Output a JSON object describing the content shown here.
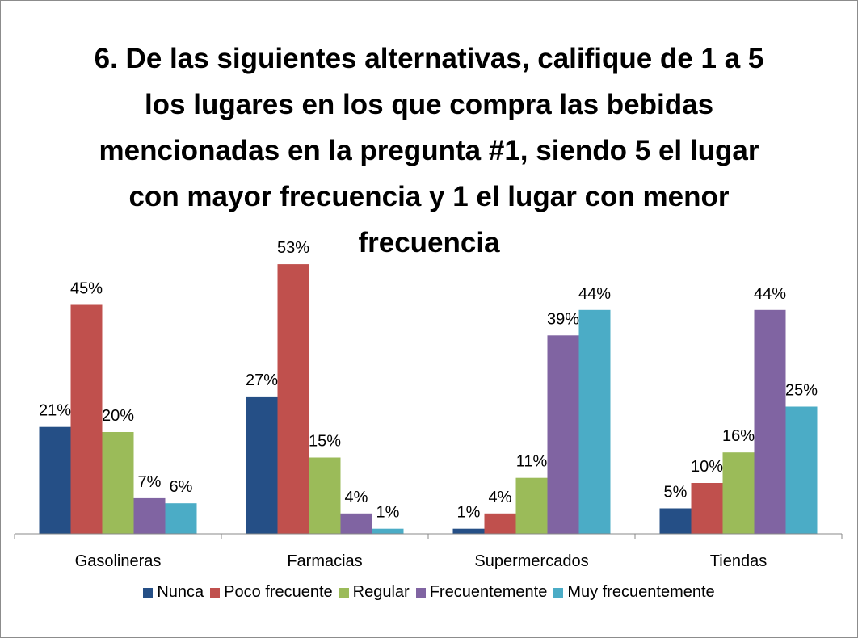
{
  "chart_data": {
    "type": "bar",
    "title": "6. De las siguientes alternativas, califique de 1 a 5 los lugares en los que compra las bebidas mencionadas en la pregunta #1, siendo 5 el lugar con mayor frecuencia y 1 el lugar con menor frecuencia",
    "categories": [
      "Gasolineras",
      "Farmacias",
      "Supermercados",
      "Tiendas"
    ],
    "ylim": [
      0,
      60
    ],
    "series": [
      {
        "name": "Nunca",
        "color": "#254f86",
        "values": [
          21,
          27,
          1,
          5
        ],
        "value_labels": [
          "21%",
          "27%",
          "1%",
          "5%"
        ]
      },
      {
        "name": "Poco frecuente",
        "color": "#c0504d",
        "values": [
          45,
          53,
          4,
          10
        ],
        "value_labels": [
          "45%",
          "53%",
          "4%",
          "10%"
        ]
      },
      {
        "name": "Regular",
        "color": "#9bbb59",
        "values": [
          20,
          15,
          11,
          16
        ],
        "value_labels": [
          "20%",
          "15%",
          "11%",
          "16%"
        ]
      },
      {
        "name": "Frecuentemente",
        "color": "#8064a2",
        "values": [
          7,
          4,
          39,
          44
        ],
        "value_labels": [
          "7%",
          "4%",
          "39%",
          "44%"
        ]
      },
      {
        "name": "Muy frecuentemente",
        "color": "#4bacc6",
        "values": [
          6,
          1,
          44,
          25
        ],
        "value_labels": [
          "6%",
          "1%",
          "44%",
          "25%"
        ]
      }
    ]
  }
}
